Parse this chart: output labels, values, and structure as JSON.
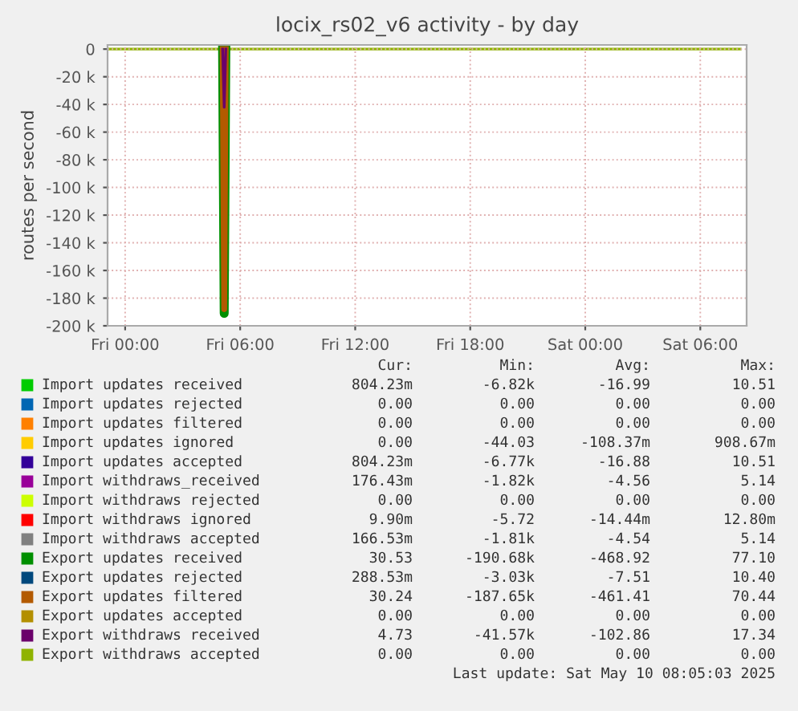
{
  "chart_data": {
    "type": "line",
    "title": "locix_rs02_v6 activity - by day",
    "ylabel": "routes per second",
    "xlim": [
      "2025-05-08T23:05",
      "2025-05-10T08:25"
    ],
    "xticks": [
      {
        "value": "2025-05-09T00:00",
        "label": "Fri 00:00"
      },
      {
        "value": "2025-05-09T06:00",
        "label": "Fri 06:00"
      },
      {
        "value": "2025-05-09T12:00",
        "label": "Fri 12:00"
      },
      {
        "value": "2025-05-09T18:00",
        "label": "Fri 18:00"
      },
      {
        "value": "2025-05-10T00:00",
        "label": "Sat 00:00"
      },
      {
        "value": "2025-05-10T06:00",
        "label": "Sat 06:00"
      }
    ],
    "ylim": [
      -200000,
      3000
    ],
    "yticks": [
      0,
      {
        "value": -20000,
        "label": "-20 k"
      },
      {
        "value": -40000,
        "label": "-40 k"
      },
      {
        "value": -60000,
        "label": "-60 k"
      },
      {
        "value": -80000,
        "label": "-80 k"
      },
      {
        "value": -100000,
        "label": "-100 k"
      },
      {
        "value": -120000,
        "label": "-120 k"
      },
      {
        "value": -140000,
        "label": "-140 k"
      },
      {
        "value": -160000,
        "label": "-160 k"
      },
      {
        "value": -180000,
        "label": "-180 k"
      },
      {
        "value": -200000,
        "label": "-200 k"
      }
    ],
    "grid": true,
    "legend": "bottom",
    "series": [
      {
        "name": "Import updates received",
        "color": "#00cc00"
      },
      {
        "name": "Import updates rejected",
        "color": "#0066b3"
      },
      {
        "name": "Import updates filtered",
        "color": "#ff8000"
      },
      {
        "name": "Import updates ignored",
        "color": "#ffcc00"
      },
      {
        "name": "Import updates accepted",
        "color": "#330099"
      },
      {
        "name": "Import withdraws_received",
        "color": "#990099"
      },
      {
        "name": "Import withdraws rejected",
        "color": "#ccff00"
      },
      {
        "name": "Import withdraws ignored",
        "color": "#ff0000"
      },
      {
        "name": "Import withdraws accepted",
        "color": "#808080"
      },
      {
        "name": "Export updates received",
        "color": "#008f00",
        "x": [
          "2025-05-09T05:05",
          "2025-05-09T05:10",
          "2025-05-09T05:15"
        ],
        "values": [
          0,
          -191000,
          0
        ]
      },
      {
        "name": "Export updates rejected",
        "color": "#00487d"
      },
      {
        "name": "Export updates filtered",
        "color": "#b35a00",
        "x": [
          "2025-05-09T05:05",
          "2025-05-09T05:10",
          "2025-05-09T05:15"
        ],
        "values": [
          0,
          -188000,
          0
        ]
      },
      {
        "name": "Export updates accepted",
        "color": "#b38f00"
      },
      {
        "name": "Export withdraws received",
        "color": "#6b006b",
        "x": [
          "2025-05-09T05:05",
          "2025-05-09T05:10",
          "2025-05-09T05:15"
        ],
        "values": [
          0,
          -42000,
          0
        ]
      },
      {
        "name": "Export withdraws accepted",
        "color": "#8fb300",
        "x": [
          "2025-05-08T23:05",
          "2025-05-10T08:05"
        ],
        "values": [
          0,
          0
        ]
      }
    ],
    "annotations": [
      "Cur:",
      "Min:",
      "Avg:",
      "Max:",
      "804.23m",
      "-6.82k",
      "-16.99",
      "10.51",
      "0.00",
      "0.00",
      "0.00",
      "0.00",
      "0.00",
      "0.00",
      "0.00",
      "0.00",
      "0.00",
      "-44.03",
      "-108.37m",
      "908.67m",
      "804.23m",
      "-6.77k",
      "-16.88",
      "10.51",
      "176.43m",
      "-1.82k",
      "-4.56",
      "5.14",
      "0.00",
      "0.00",
      "0.00",
      "0.00",
      "9.90m",
      "-5.72",
      "-14.44m",
      "12.80m",
      "166.53m",
      "-1.81k",
      "-4.54",
      "5.14",
      "30.53",
      "-190.68k",
      "-468.92",
      "77.10",
      "288.53m",
      "-3.03k",
      "-7.51",
      "10.40",
      "30.24",
      "-187.65k",
      "-461.41",
      "70.44",
      "0.00",
      "0.00",
      "0.00",
      "0.00",
      "4.73",
      "-41.57k",
      "-102.86",
      "17.34",
      "0.00",
      "0.00",
      "0.00",
      "0.00",
      "Last update: Sat May 10 08:05:03 2025"
    ]
  }
}
